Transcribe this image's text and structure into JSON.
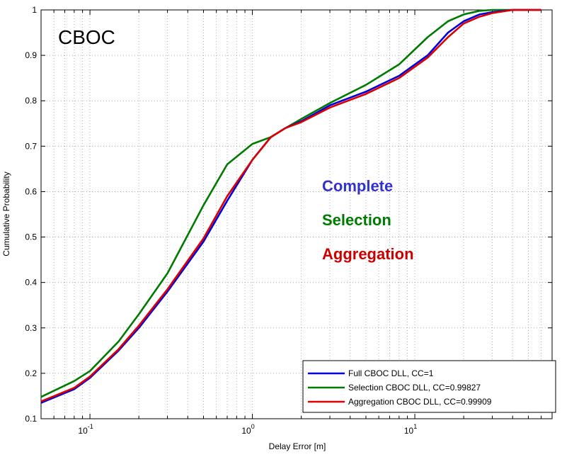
{
  "chart_data": {
    "type": "line",
    "title": "CBOC",
    "xlabel": "Delay Error [m]",
    "ylabel": "Cumulative Probability",
    "xscale": "log",
    "xlim": [
      0.05,
      70
    ],
    "ylim": [
      0.1,
      1.0
    ],
    "grid": true,
    "x_ticks": [
      {
        "value": 0.1,
        "base": "10",
        "exp": "-1"
      },
      {
        "value": 1,
        "base": "10",
        "exp": "0"
      },
      {
        "value": 10,
        "base": "10",
        "exp": "1"
      }
    ],
    "y_ticks": [
      "0.1",
      "0.2",
      "0.3",
      "0.4",
      "0.5",
      "0.6",
      "0.7",
      "0.8",
      "0.9",
      "1"
    ],
    "legend_position": "bottom-right",
    "annotations": [
      {
        "text": "Complete",
        "color": "#3333cc"
      },
      {
        "text": "Selection",
        "color": "#007a00"
      },
      {
        "text": "Aggregation",
        "color": "#cc0000"
      }
    ],
    "series": [
      {
        "name": "Full CBOC DLL,  CC=1",
        "color": "#0000dd",
        "x": [
          0.05,
          0.08,
          0.1,
          0.15,
          0.2,
          0.3,
          0.5,
          0.7,
          1.0,
          1.3,
          1.6,
          2.0,
          3.0,
          5.0,
          8.0,
          12,
          16,
          20,
          25,
          30,
          40,
          60
        ],
        "y": [
          0.135,
          0.165,
          0.19,
          0.25,
          0.3,
          0.38,
          0.49,
          0.58,
          0.67,
          0.72,
          0.74,
          0.755,
          0.79,
          0.82,
          0.855,
          0.9,
          0.95,
          0.975,
          0.99,
          0.995,
          1.0,
          1.0
        ]
      },
      {
        "name": "Selection CBOC DLL,  CC=0.99827",
        "color": "#007a00",
        "x": [
          0.05,
          0.08,
          0.1,
          0.15,
          0.2,
          0.3,
          0.5,
          0.7,
          1.0,
          1.3,
          1.6,
          2.0,
          3.0,
          5.0,
          8.0,
          12,
          16,
          20,
          25,
          30,
          40,
          60
        ],
        "y": [
          0.148,
          0.183,
          0.205,
          0.27,
          0.33,
          0.42,
          0.57,
          0.66,
          0.705,
          0.72,
          0.74,
          0.76,
          0.795,
          0.835,
          0.88,
          0.94,
          0.975,
          0.99,
          0.998,
          1.0,
          1.0,
          1.0
        ]
      },
      {
        "name": "Aggregation CBOC DLL,  CC=0.99909",
        "color": "#dd0000",
        "x": [
          0.05,
          0.08,
          0.1,
          0.15,
          0.2,
          0.3,
          0.5,
          0.7,
          1.0,
          1.3,
          1.6,
          2.0,
          3.0,
          5.0,
          8.0,
          12,
          16,
          20,
          25,
          30,
          40,
          60
        ],
        "y": [
          0.138,
          0.168,
          0.193,
          0.253,
          0.305,
          0.385,
          0.497,
          0.59,
          0.67,
          0.72,
          0.74,
          0.753,
          0.785,
          0.815,
          0.85,
          0.895,
          0.94,
          0.97,
          0.985,
          0.993,
          1.0,
          1.0
        ]
      }
    ]
  }
}
